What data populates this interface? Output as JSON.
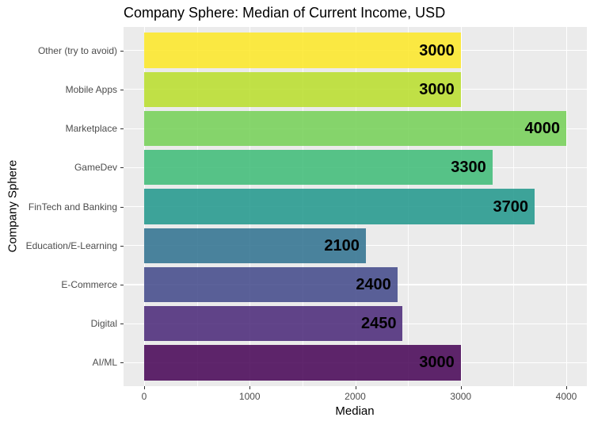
{
  "chart_data": {
    "type": "bar",
    "orientation": "horizontal",
    "title": "Company Sphere: Median of Current Income, USD",
    "xlabel": "Median",
    "ylabel": "Company Sphere",
    "xlim": [
      0,
      4000
    ],
    "xticks": [
      "0",
      "1000",
      "2000",
      "3000",
      "4000"
    ],
    "grid": true,
    "legend": null,
    "categories": [
      "Other (try to avoid)",
      "Mobile Apps",
      "Marketplace",
      "GameDev",
      "FinTech and Banking",
      "Education/E-Learning",
      "E-Commerce",
      "Digital",
      "AI/ML"
    ],
    "values": [
      3000,
      3000,
      4000,
      3300,
      3700,
      2100,
      2400,
      2450,
      3000
    ],
    "colors": [
      "#FDE725",
      "#B8DE29",
      "#73D055",
      "#3CBB75",
      "#1F968B",
      "#2D708E",
      "#3F4788",
      "#482677",
      "#440154"
    ],
    "value_labels": [
      "3000",
      "3000",
      "4000",
      "3300",
      "3700",
      "2100",
      "2400",
      "2450",
      "3000"
    ]
  }
}
